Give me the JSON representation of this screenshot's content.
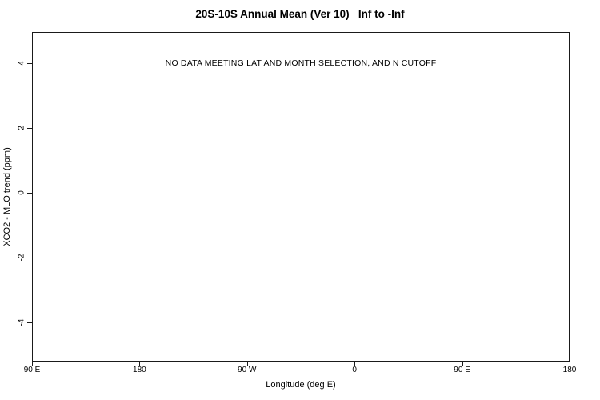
{
  "chart_data": {
    "type": "scatter",
    "title": "20S-10S Annual Mean (Ver 10)   Inf to -Inf",
    "xlabel": "Longitude (deg E)",
    "ylabel": "XCO2 - MLO trend (ppm)",
    "annotation": "NO DATA MEETING LAT AND MONTH SELECTION, AND N CUTOFF",
    "annotation_xy": [
      315,
      4
    ],
    "x_ticks": [
      {
        "value": 90,
        "label": "90 E"
      },
      {
        "value": 180,
        "label": "180"
      },
      {
        "value": 270,
        "label": "90 W"
      },
      {
        "value": 360,
        "label": "0"
      },
      {
        "value": 450,
        "label": "90 E"
      },
      {
        "value": 540,
        "label": "180"
      }
    ],
    "y_ticks": [
      {
        "value": -4,
        "label": "-4"
      },
      {
        "value": -2,
        "label": "-2"
      },
      {
        "value": 0,
        "label": "0"
      },
      {
        "value": 2,
        "label": "2"
      },
      {
        "value": 4,
        "label": "4"
      }
    ],
    "xlim": [
      90,
      540
    ],
    "ylim": [
      -5.2,
      4.97
    ],
    "series": [],
    "grid": false,
    "legend": "none",
    "colors": {
      "background": "#ffffff",
      "axis": "#1a1a1a",
      "text": "#000000"
    }
  }
}
